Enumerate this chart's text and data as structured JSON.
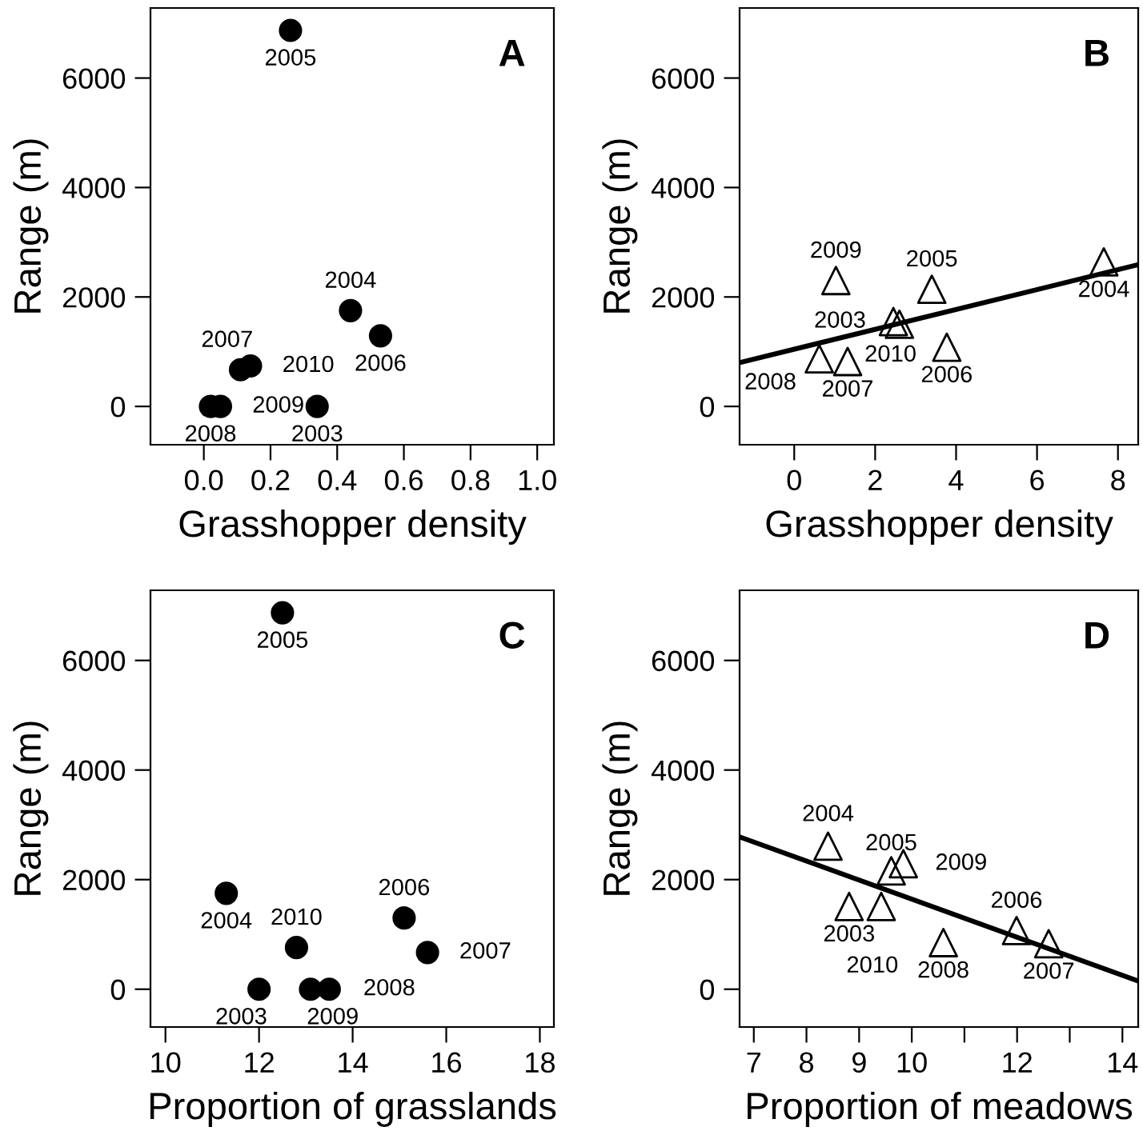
{
  "chart_data": [
    {
      "type": "scatter",
      "xlabel": "Grasshopper density",
      "ylabel": "Range (m)",
      "xlim": [
        -0.16,
        1.05
      ],
      "ylim": [
        -700,
        7280
      ],
      "xticks": [
        {
          "value": 0,
          "label": "0.0"
        },
        {
          "value": 0.2,
          "label": "0.2"
        },
        {
          "value": 0.4,
          "label": "0.4"
        },
        {
          "value": 0.6,
          "label": "0.6"
        },
        {
          "value": 0.8,
          "label": "0.8"
        },
        {
          "value": 1.0,
          "label": "1.0"
        }
      ],
      "yticks": [
        0,
        2000,
        4000,
        6000
      ],
      "grid": false,
      "legend": false,
      "series": [
        {
          "marker": "circle",
          "color": "#000000",
          "x": [
            0.34,
            0.44,
            0.26,
            0.53,
            0.11,
            0.02,
            0.05,
            0.14
          ],
          "values": [
            0,
            1750,
            6870,
            1290,
            670,
            0,
            0,
            740
          ]
        }
      ],
      "annotations": [
        "A",
        {
          "text": "2003",
          "x": 0.34,
          "y": 0
        },
        {
          "text": "2004",
          "x": 0.44,
          "y": 1750
        },
        {
          "text": "2005",
          "x": 0.26,
          "y": 6870
        },
        {
          "text": "2006",
          "x": 0.53,
          "y": 1290
        },
        {
          "text": "2007",
          "x": 0.11,
          "y": 670
        },
        {
          "text": "2008",
          "x": 0.02,
          "y": 0
        },
        {
          "text": "2009",
          "x": 0.05,
          "y": 0
        },
        {
          "text": "2010",
          "x": 0.14,
          "y": 740
        }
      ]
    },
    {
      "type": "scatter",
      "xlabel": "Grasshopper density",
      "ylabel": "Range (m)",
      "xlim": [
        -1.35,
        8.5
      ],
      "ylim": [
        -700,
        7280
      ],
      "xticks": [
        0,
        2,
        4,
        6,
        8
      ],
      "yticks": [
        0,
        2000,
        4000,
        6000
      ],
      "grid": false,
      "legend": false,
      "series": [
        {
          "marker": "triangle",
          "color": "#000000",
          "x": [
            2.45,
            7.65,
            3.4,
            3.77,
            1.32,
            0.62,
            1.03,
            2.6
          ],
          "values": [
            1550,
            2640,
            2140,
            1080,
            820,
            870,
            2300,
            1500
          ]
        },
        {
          "type": "line",
          "color": "#000000",
          "x": [
            -1.35,
            8.5
          ],
          "values": [
            800,
            2590
          ]
        }
      ],
      "annotations": [
        "B",
        {
          "text": "2003",
          "x": 2.45,
          "y": 1550
        },
        {
          "text": "2004",
          "x": 7.65,
          "y": 2640
        },
        {
          "text": "2005",
          "x": 3.4,
          "y": 2140
        },
        {
          "text": "2006",
          "x": 3.77,
          "y": 1080
        },
        {
          "text": "2007",
          "x": 1.32,
          "y": 820
        },
        {
          "text": "2008",
          "x": 0.62,
          "y": 870
        },
        {
          "text": "2009",
          "x": 1.03,
          "y": 2300
        },
        {
          "text": "2010",
          "x": 2.6,
          "y": 1500
        }
      ]
    },
    {
      "type": "scatter",
      "xlabel": "Proportion of grasslands",
      "ylabel": "Range (m)",
      "xlim": [
        9.68,
        18.3
      ],
      "ylim": [
        -690,
        7280
      ],
      "xticks": [
        10,
        12,
        14,
        16,
        18
      ],
      "yticks": [
        0,
        2000,
        4000,
        6000
      ],
      "grid": false,
      "legend": false,
      "series": [
        {
          "marker": "circle",
          "color": "#000000",
          "x": [
            12.0,
            11.3,
            12.5,
            15.1,
            15.6,
            13.5,
            13.1,
            12.8
          ],
          "values": [
            0,
            1750,
            6870,
            1300,
            670,
            0,
            0,
            760
          ]
        }
      ],
      "annotations": [
        "C",
        {
          "text": "2003",
          "x": 12.0,
          "y": 0
        },
        {
          "text": "2004",
          "x": 11.3,
          "y": 1750
        },
        {
          "text": "2005",
          "x": 12.5,
          "y": 6870
        },
        {
          "text": "2006",
          "x": 15.1,
          "y": 1300
        },
        {
          "text": "2007",
          "x": 15.6,
          "y": 670
        },
        {
          "text": "2008",
          "x": 13.5,
          "y": 0
        },
        {
          "text": "2009",
          "x": 13.1,
          "y": 0
        },
        {
          "text": "2010",
          "x": 12.8,
          "y": 760
        }
      ]
    },
    {
      "type": "scatter",
      "xlabel": "Proportion of meadows",
      "ylabel": "Range (m)",
      "xlim": [
        6.73,
        14.3
      ],
      "ylim": [
        -690,
        7280
      ],
      "xticks": [
        7,
        8,
        9,
        10,
        {
          "value": 11,
          "label": null
        },
        12,
        {
          "value": 13,
          "label": null
        },
        14
      ],
      "yticks": [
        0,
        2000,
        4000,
        6000
      ],
      "grid": false,
      "legend": false,
      "series": [
        {
          "marker": "triangle",
          "color": "#000000",
          "x": [
            8.81,
            8.41,
            9.61,
            11.99,
            12.6,
            10.6,
            9.84,
            9.42
          ],
          "values": [
            1510,
            2610,
            2160,
            1070,
            830,
            850,
            2290,
            1510
          ]
        },
        {
          "type": "line",
          "color": "#000000",
          "x": [
            6.73,
            14.3
          ],
          "values": [
            2780,
            150
          ]
        }
      ],
      "annotations": [
        "D",
        {
          "text": "2003",
          "x": 8.81,
          "y": 1510
        },
        {
          "text": "2004",
          "x": 8.41,
          "y": 2610
        },
        {
          "text": "2005",
          "x": 9.61,
          "y": 2160
        },
        {
          "text": "2006",
          "x": 11.99,
          "y": 1070
        },
        {
          "text": "2007",
          "x": 12.6,
          "y": 830
        },
        {
          "text": "2008",
          "x": 10.6,
          "y": 850
        },
        {
          "text": "2009",
          "x": 9.84,
          "y": 2290
        },
        {
          "text": "2010",
          "x": 9.42,
          "y": 1510
        }
      ]
    }
  ]
}
